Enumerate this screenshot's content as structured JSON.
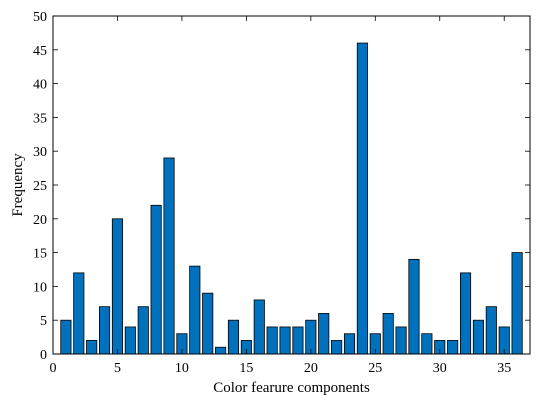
{
  "chart_data": {
    "type": "bar",
    "title": "",
    "xlabel": "Color fearure components",
    "ylabel": "Frequency",
    "x": [
      1,
      2,
      3,
      4,
      5,
      6,
      7,
      8,
      9,
      10,
      11,
      12,
      13,
      14,
      15,
      16,
      17,
      18,
      19,
      20,
      21,
      22,
      23,
      24,
      25,
      26,
      27,
      28,
      29,
      30,
      31,
      32,
      33,
      34,
      35,
      36
    ],
    "values": [
      5,
      12,
      2,
      7,
      20,
      4,
      7,
      22,
      29,
      3,
      13,
      9,
      1,
      5,
      2,
      8,
      4,
      4,
      4,
      5,
      6,
      2,
      3,
      46,
      3,
      6,
      4,
      14,
      3,
      2,
      2,
      12,
      5,
      7,
      4,
      15
    ],
    "xlim": [
      0,
      37
    ],
    "ylim": [
      0,
      50
    ],
    "xticks": [
      0,
      5,
      10,
      15,
      20,
      25,
      30,
      35
    ],
    "yticks": [
      0,
      5,
      10,
      15,
      20,
      25,
      30,
      35,
      40,
      45,
      50
    ],
    "bar_color": "#0072BD",
    "edge_color": "#000000",
    "grid": false
  }
}
